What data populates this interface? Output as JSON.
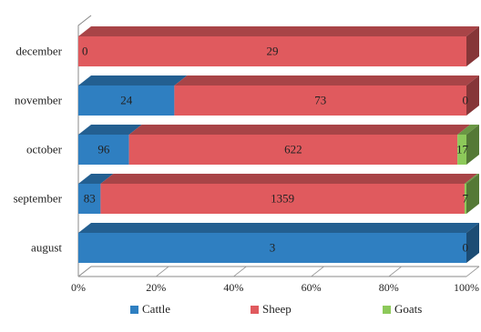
{
  "chart_data": {
    "type": "bar",
    "orientation": "horizontal",
    "stacked": "percent",
    "categories": [
      "december",
      "november",
      "october",
      "september",
      "august"
    ],
    "series": [
      {
        "name": "Cattle",
        "color": "#2f7fc1",
        "values": [
          0,
          24,
          96,
          83,
          3
        ]
      },
      {
        "name": "Sheep",
        "color": "#e05a5e",
        "values": [
          29,
          73,
          622,
          1359,
          0
        ]
      },
      {
        "name": "Goats",
        "color": "#8dc95a",
        "values": [
          0,
          0,
          17,
          7,
          0
        ]
      }
    ],
    "data_labels": [
      [
        "0",
        "29",
        ""
      ],
      [
        "24",
        "73",
        "0"
      ],
      [
        "96",
        "622",
        "17"
      ],
      [
        "83",
        "1359",
        "7"
      ],
      [
        "3",
        "",
        "0"
      ]
    ],
    "x_ticks": [
      "0%",
      "20%",
      "40%",
      "60%",
      "80%",
      "100%"
    ],
    "xlim": [
      0,
      100
    ],
    "grid": false,
    "legend_position": "bottom"
  }
}
